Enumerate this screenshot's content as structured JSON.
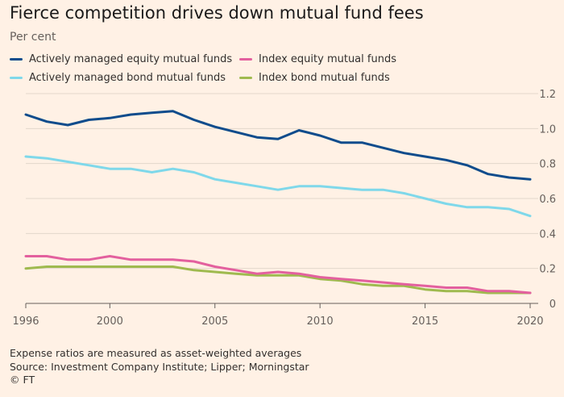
{
  "header": {
    "title": "Fierce competition drives down mutual fund fees",
    "subtitle": "Per cent"
  },
  "footer": {
    "note": "Expense ratios are measured as asset-weighted averages",
    "source": "Source: Investment Company Institute; Lipper; Morningstar",
    "credit": "© FT"
  },
  "chart_data": {
    "type": "line",
    "title": "Fierce competition drives down mutual fund fees",
    "ylabel": "Per cent",
    "xlim": [
      1996,
      2020
    ],
    "ylim": [
      0,
      1.2
    ],
    "x_ticks": [
      1996,
      2000,
      2005,
      2010,
      2015,
      2020
    ],
    "y_ticks": [
      0,
      0.2,
      0.4,
      0.6,
      0.8,
      1.0,
      1.2
    ],
    "y_tick_labels": [
      "0",
      "0.2",
      "0.4",
      "0.6",
      "0.8",
      "1.0",
      "1.2"
    ],
    "y_axis_side": "right",
    "grid": "horizontal",
    "legend_position": "top-left",
    "x": [
      1996,
      1997,
      1998,
      1999,
      2000,
      2001,
      2002,
      2003,
      2004,
      2005,
      2006,
      2007,
      2008,
      2009,
      2010,
      2011,
      2012,
      2013,
      2014,
      2015,
      2016,
      2017,
      2018,
      2019,
      2020
    ],
    "series": [
      {
        "name": "Actively managed equity mutual funds",
        "color": "#0f4c8c",
        "values": [
          1.08,
          1.04,
          1.02,
          1.05,
          1.06,
          1.08,
          1.09,
          1.1,
          1.05,
          1.01,
          0.98,
          0.95,
          0.94,
          0.99,
          0.96,
          0.92,
          0.92,
          0.89,
          0.86,
          0.84,
          0.82,
          0.79,
          0.74,
          0.72,
          0.71
        ]
      },
      {
        "name": "Actively managed bond mutual funds",
        "color": "#7fd8ea",
        "values": [
          0.84,
          0.83,
          0.81,
          0.79,
          0.77,
          0.77,
          0.75,
          0.77,
          0.75,
          0.71,
          0.69,
          0.67,
          0.65,
          0.67,
          0.67,
          0.66,
          0.65,
          0.65,
          0.63,
          0.6,
          0.57,
          0.55,
          0.55,
          0.54,
          0.5
        ]
      },
      {
        "name": "Index equity mutual funds",
        "color": "#e3609e",
        "values": [
          0.27,
          0.27,
          0.25,
          0.25,
          0.27,
          0.25,
          0.25,
          0.25,
          0.24,
          0.21,
          0.19,
          0.17,
          0.18,
          0.17,
          0.15,
          0.14,
          0.13,
          0.12,
          0.11,
          0.1,
          0.09,
          0.09,
          0.07,
          0.07,
          0.06
        ]
      },
      {
        "name": "Index bond mutual funds",
        "color": "#9fba4f",
        "values": [
          0.2,
          0.21,
          0.21,
          0.21,
          0.21,
          0.21,
          0.21,
          0.21,
          0.19,
          0.18,
          0.17,
          0.16,
          0.16,
          0.16,
          0.14,
          0.13,
          0.11,
          0.1,
          0.1,
          0.08,
          0.07,
          0.07,
          0.06,
          0.06,
          0.06
        ]
      }
    ]
  }
}
